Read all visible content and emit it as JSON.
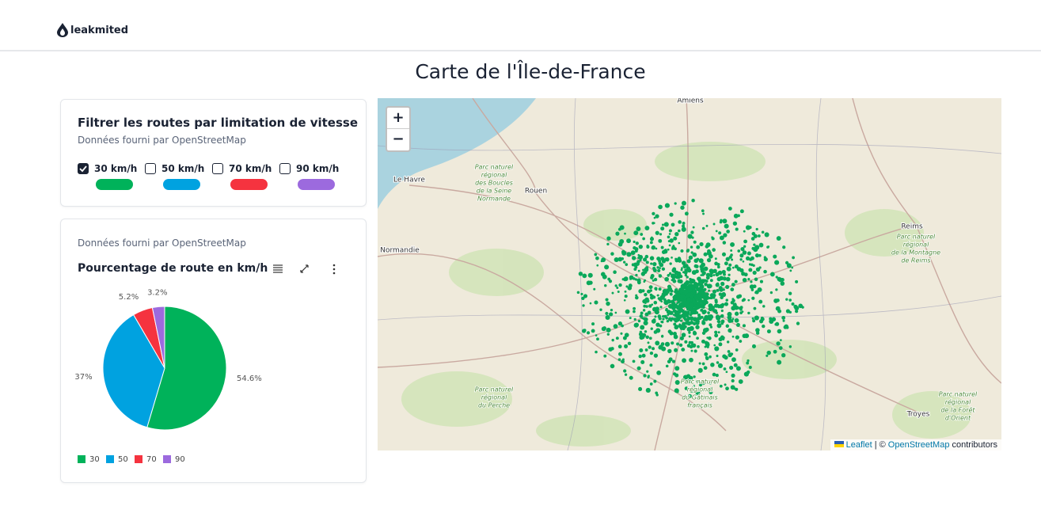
{
  "header": {
    "brand": "leakmited"
  },
  "page_title": "Carte de l'Île-de-France",
  "filter": {
    "title": "Filtrer les routes par limitation de vitesse",
    "source": "Données fourni par OpenStreetMap",
    "options": [
      {
        "label": "30 km/h",
        "checked": true,
        "color": "#00b25a"
      },
      {
        "label": "50 km/h",
        "checked": false,
        "color": "#00a2e0"
      },
      {
        "label": "70 km/h",
        "checked": false,
        "color": "#f5333f"
      },
      {
        "label": "90 km/h",
        "checked": false,
        "color": "#9c6ade"
      }
    ]
  },
  "chart_source": "Données fourni par OpenStreetMap",
  "chart_data": {
    "type": "pie",
    "title": "Pourcentage de route en km/h",
    "categories": [
      "30",
      "50",
      "70",
      "90"
    ],
    "values": [
      54.6,
      37,
      5.2,
      3.2
    ],
    "value_labels": [
      "54.6%",
      "37%",
      "5.2%",
      "3.2%"
    ],
    "colors": [
      "#00b25a",
      "#00a2e0",
      "#f5333f",
      "#9c6ade"
    ]
  },
  "map": {
    "zoom_in": "+",
    "zoom_out": "−",
    "cities": [
      "Amiens",
      "Le Havre",
      "Rouen",
      "Reims",
      "Troyes",
      "Normandie"
    ],
    "parks": [
      [
        "Parc naturel",
        "régional",
        "des Boucles",
        "de la Seine",
        "Normande"
      ],
      [
        "Parc naturel",
        "régional",
        "du Perche"
      ],
      [
        "Parc naturel",
        "régional",
        "de la Montagne",
        "de Reims"
      ],
      [
        "Parc naturel",
        "régional",
        "du Gâtinais",
        "français"
      ],
      [
        "Parc naturel",
        "régional",
        "de la Forêt",
        "d'Orient"
      ]
    ],
    "attribution": {
      "leaflet": "Leaflet",
      "sep": "| ©",
      "osm": "OpenStreetMap",
      "tail": "contributors"
    }
  }
}
